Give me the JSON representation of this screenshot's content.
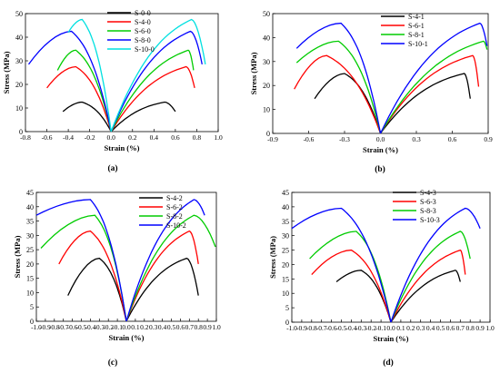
{
  "chart_data": [
    {
      "type": "line",
      "panel_label": "(a)",
      "xlabel": "Strain (%)",
      "ylabel": "Stress (MPa)",
      "xlim": [
        -0.8,
        1.0
      ],
      "ylim": [
        0,
        50
      ],
      "xticks": [
        "-0.8",
        "-0.6",
        "-0.4",
        "-0.2",
        "0.0",
        "0.2",
        "0.4",
        "0.6",
        "0.8",
        "1.0"
      ],
      "yticks": [
        "0",
        "10",
        "20",
        "30",
        "40",
        "50"
      ],
      "legend_position": "top-center",
      "grid": false,
      "series": [
        {
          "name": "S-0-0",
          "color": "#000000",
          "lateral_peak": [
            -0.27,
            12.5
          ],
          "lateral_end": [
            -0.45,
            8.5
          ],
          "axial_peak": [
            0.5,
            12.5
          ],
          "axial_end": [
            0.6,
            8.5
          ]
        },
        {
          "name": "S-4-0",
          "color": "#ff0000",
          "lateral_peak": [
            -0.33,
            27.5
          ],
          "lateral_end": [
            -0.6,
            18.5
          ],
          "axial_peak": [
            0.7,
            27.5
          ],
          "axial_end": [
            0.78,
            18.5
          ]
        },
        {
          "name": "S-6-0",
          "color": "#00cc00",
          "lateral_peak": [
            -0.33,
            34.5
          ],
          "lateral_end": [
            -0.5,
            26.0
          ],
          "axial_peak": [
            0.72,
            34.5
          ],
          "axial_end": [
            0.77,
            26.0
          ]
        },
        {
          "name": "S-8-0",
          "color": "#0000ff",
          "lateral_peak": [
            -0.37,
            42.5
          ],
          "lateral_end": [
            -0.77,
            28.5
          ],
          "axial_peak": [
            0.74,
            42.5
          ],
          "axial_end": [
            0.85,
            28.5
          ]
        },
        {
          "name": "S-10-0",
          "color": "#00e0e0",
          "lateral_peak": [
            -0.27,
            47.5
          ],
          "lateral_end": [
            -0.4,
            42.0
          ],
          "axial_peak": [
            0.75,
            47.5
          ],
          "axial_end": [
            0.88,
            28.5
          ]
        }
      ]
    },
    {
      "type": "line",
      "panel_label": "(b)",
      "xlabel": "Strain (%)",
      "ylabel": "Stress (MPa)",
      "xlim": [
        -0.9,
        0.9
      ],
      "ylim": [
        0,
        50
      ],
      "xticks": [
        "-0.9",
        "-0.6",
        "-0.3",
        "0.0",
        "0.3",
        "0.6",
        "0.9"
      ],
      "yticks": [
        "0",
        "10",
        "20",
        "30",
        "40",
        "50"
      ],
      "legend_position": "top-center",
      "grid": false,
      "series": [
        {
          "name": "S-4-1",
          "color": "#000000",
          "lateral_peak": [
            -0.3,
            25.0
          ],
          "lateral_end": [
            -0.55,
            14.5
          ],
          "axial_peak": [
            0.7,
            25.0
          ],
          "axial_end": [
            0.75,
            14.5
          ]
        },
        {
          "name": "S-6-1",
          "color": "#ff0000",
          "lateral_peak": [
            -0.45,
            32.5
          ],
          "lateral_end": [
            -0.72,
            18.5
          ],
          "axial_peak": [
            0.77,
            32.5
          ],
          "axial_end": [
            0.82,
            19.5
          ]
        },
        {
          "name": "S-8-1",
          "color": "#00cc00",
          "lateral_peak": [
            -0.35,
            38.5
          ],
          "lateral_end": [
            -0.7,
            29.5
          ],
          "axial_peak": [
            0.86,
            38.5
          ],
          "axial_end": [
            0.89,
            35.0
          ]
        },
        {
          "name": "S-10-1",
          "color": "#0000ff",
          "lateral_peak": [
            -0.33,
            46.0
          ],
          "lateral_end": [
            -0.7,
            35.5
          ],
          "axial_peak": [
            0.83,
            46.0
          ],
          "axial_end": [
            0.89,
            36.5
          ]
        }
      ]
    },
    {
      "type": "line",
      "panel_label": "(c)",
      "xlabel": "Strain (%)",
      "ylabel": "Stress (MPa)",
      "xlim": [
        -1.0,
        1.0
      ],
      "ylim": [
        0,
        45
      ],
      "xticks": [
        "-1.0",
        "-0.9",
        "-0.8",
        "-0.7",
        "-0.6",
        "-0.5",
        "-0.4",
        "-0.3",
        "-0.2",
        "-0.1",
        "0.0",
        "0.1",
        "0.2",
        "0.3",
        "0.4",
        "0.5",
        "0.6",
        "0.7",
        "0.8",
        "0.9",
        "1.0"
      ],
      "yticks": [
        "0",
        "5",
        "10",
        "15",
        "20",
        "25",
        "30",
        "35",
        "40",
        "45"
      ],
      "legend_position": "top-right",
      "grid": false,
      "series": [
        {
          "name": "S-4-2",
          "color": "#000000",
          "lateral_peak": [
            -0.3,
            22.0
          ],
          "lateral_end": [
            -0.65,
            9.0
          ],
          "axial_peak": [
            0.67,
            22.0
          ],
          "axial_end": [
            0.8,
            9.0
          ]
        },
        {
          "name": "S-6-2",
          "color": "#ff0000",
          "lateral_peak": [
            -0.4,
            31.5
          ],
          "lateral_end": [
            -0.75,
            20.0
          ],
          "axial_peak": [
            0.7,
            31.5
          ],
          "axial_end": [
            0.8,
            20.0
          ]
        },
        {
          "name": "S-8-2",
          "color": "#00cc00",
          "lateral_peak": [
            -0.35,
            37.0
          ],
          "lateral_end": [
            -0.95,
            25.5
          ],
          "axial_peak": [
            0.75,
            37.0
          ],
          "axial_end": [
            0.99,
            26.0
          ]
        },
        {
          "name": "S-10-2",
          "color": "#0000ff",
          "lateral_peak": [
            -0.4,
            42.5
          ],
          "lateral_end": [
            -1.0,
            37.0
          ],
          "axial_peak": [
            0.75,
            42.5
          ],
          "axial_end": [
            0.87,
            37.0
          ]
        }
      ]
    },
    {
      "type": "line",
      "panel_label": "(d)",
      "xlabel": "Strain (%)",
      "ylabel": "Stress (MPa)",
      "xlim": [
        -1.0,
        1.0
      ],
      "ylim": [
        0,
        45
      ],
      "xticks": [
        "-1.0",
        "-0.9",
        "-0.8",
        "-0.7",
        "-0.6",
        "-0.5",
        "-0.4",
        "-0.3",
        "-0.2",
        "-0.1",
        "0.0",
        "0.1",
        "0.2",
        "0.3",
        "0.4",
        "0.5",
        "0.6",
        "0.7",
        "0.8",
        "0.9",
        "1.0"
      ],
      "yticks": [
        "0",
        "5",
        "10",
        "15",
        "20",
        "25",
        "30",
        "35",
        "40",
        "45"
      ],
      "legend_position": "top-right",
      "grid": false,
      "series": [
        {
          "name": "S-4-3",
          "color": "#000000",
          "lateral_peak": [
            -0.3,
            18.0
          ],
          "lateral_end": [
            -0.55,
            14.0
          ],
          "axial_peak": [
            0.65,
            18.0
          ],
          "axial_end": [
            0.7,
            14.0
          ]
        },
        {
          "name": "S-6-3",
          "color": "#ff0000",
          "lateral_peak": [
            -0.4,
            25.0
          ],
          "lateral_end": [
            -0.8,
            16.5
          ],
          "axial_peak": [
            0.7,
            25.0
          ],
          "axial_end": [
            0.75,
            16.5
          ]
        },
        {
          "name": "S-8-3",
          "color": "#00cc00",
          "lateral_peak": [
            -0.35,
            31.5
          ],
          "lateral_end": [
            -0.82,
            22.0
          ],
          "axial_peak": [
            0.7,
            31.5
          ],
          "axial_end": [
            0.8,
            22.0
          ]
        },
        {
          "name": "S-10-3",
          "color": "#0000ff",
          "lateral_peak": [
            -0.5,
            39.5
          ],
          "lateral_end": [
            -1.0,
            32.5
          ],
          "axial_peak": [
            0.75,
            39.5
          ],
          "axial_end": [
            0.9,
            32.5
          ]
        }
      ]
    }
  ]
}
